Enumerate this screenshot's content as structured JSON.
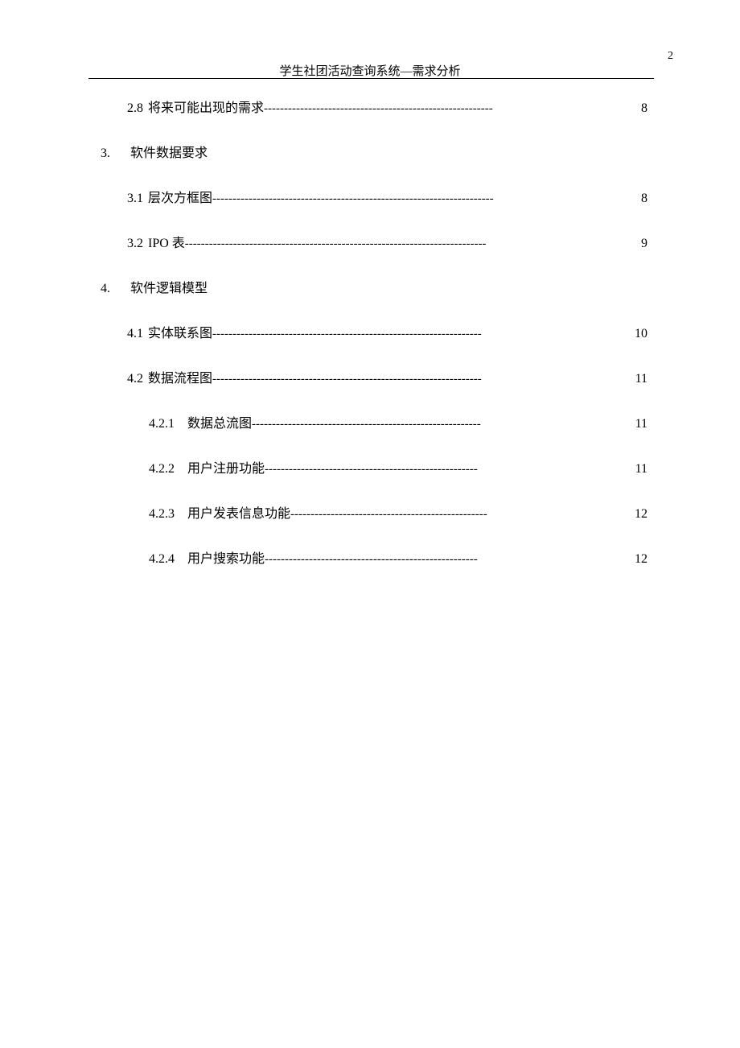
{
  "pageNumber": "2",
  "headerTitle": "学生社团活动查询系统—需求分析",
  "dashLong": "---------------------------------------------------------",
  "toc": {
    "item_2_8": {
      "num": "2.8",
      "title": "将来可能出现的需求",
      "page": "8"
    },
    "section_3": {
      "num": "3.",
      "title": "软件数据要求"
    },
    "item_3_1": {
      "num": "3.1",
      "title": "层次方框图",
      "page": "8"
    },
    "item_3_2": {
      "num": "3.2",
      "title": "IPO 表",
      "page": "9"
    },
    "section_4": {
      "num": "4.",
      "title": "软件逻辑模型"
    },
    "item_4_1": {
      "num": "4.1",
      "title": "实体联系图",
      "page": "10"
    },
    "item_4_2": {
      "num": "4.2",
      "title": "数据流程图",
      "page": "11"
    },
    "item_4_2_1": {
      "num": "4.2.1",
      "title": "数据总流图",
      "page": "11"
    },
    "item_4_2_2": {
      "num": "4.2.2",
      "title": "用户注册功能",
      "page": "11"
    },
    "item_4_2_3": {
      "num": "4.2.3",
      "title": "用户发表信息功能",
      "page": "12"
    },
    "item_4_2_4": {
      "num": "4.2.4",
      "title": "用户搜索功能",
      "page": "12"
    }
  }
}
